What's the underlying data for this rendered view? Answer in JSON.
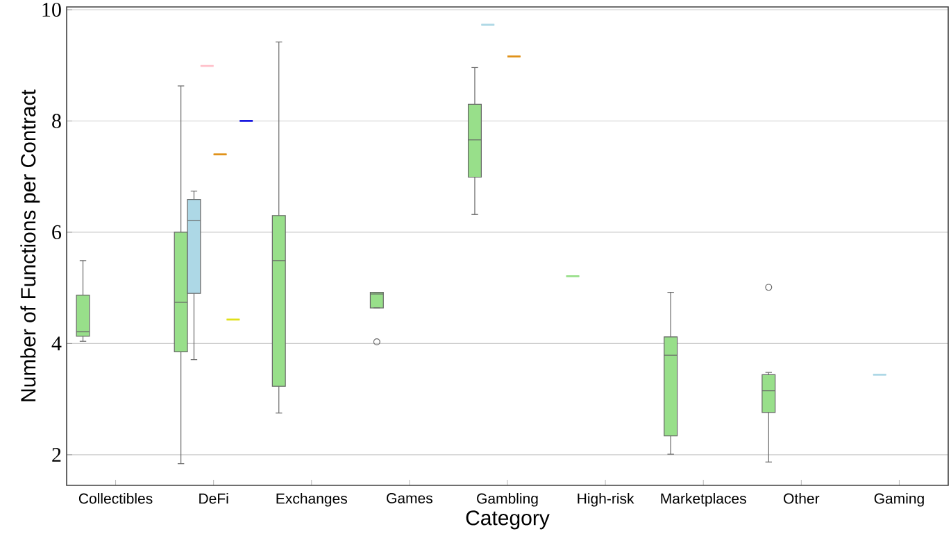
{
  "chart_data": {
    "type": "box",
    "xlabel": "Category",
    "ylabel": "Number of Functions per Contract",
    "categories": [
      "Collectibles",
      "DeFi",
      "Exchanges",
      "Games",
      "Gambling",
      "High-risk",
      "Marketplaces",
      "Other",
      "Gaming"
    ],
    "ylim": [
      1.45,
      10.05
    ],
    "yticks": [
      2,
      4,
      6,
      8,
      10
    ],
    "grid": "y",
    "series": [
      {
        "color": "#98df8a",
        "boxes": [
          {
            "low": 4.04,
            "q1": 4.13,
            "median": 4.21,
            "q3": 4.87,
            "high": 5.49
          },
          {
            "low": 1.84,
            "q1": 3.85,
            "median": 4.74,
            "q3": 6.0,
            "high": 8.63
          },
          {
            "low": 2.75,
            "q1": 3.23,
            "median": 5.49,
            "q3": 6.3,
            "high": 9.42
          },
          {
            "low": 4.64,
            "q1": 4.64,
            "median": 4.89,
            "q3": 4.92,
            "high": 4.92,
            "outliers": [
              4.03
            ]
          },
          {
            "low": 6.32,
            "q1": 6.99,
            "median": 7.66,
            "q3": 8.3,
            "high": 8.96
          },
          {
            "low": 5.21,
            "q1": 5.21,
            "median": 5.21,
            "q3": 5.21,
            "high": 5.21
          },
          {
            "low": 2.01,
            "q1": 2.34,
            "median": 3.79,
            "q3": 4.12,
            "high": 4.92
          },
          {
            "low": 1.87,
            "q1": 2.76,
            "median": 3.15,
            "q3": 3.44,
            "high": 3.48,
            "outliers": [
              5.01
            ]
          },
          null
        ]
      },
      {
        "color": "#add8e6",
        "boxes": [
          null,
          {
            "low": 3.71,
            "q1": 4.9,
            "median": 6.21,
            "q3": 6.59,
            "high": 6.74
          },
          null,
          null,
          {
            "low": 9.73,
            "q1": 9.73,
            "median": 9.73,
            "q3": 9.73,
            "high": 9.73
          },
          null,
          null,
          null,
          {
            "low": 3.44,
            "q1": 3.44,
            "median": 3.44,
            "q3": 3.44,
            "high": 3.44
          }
        ]
      },
      {
        "color": "#ffc0cb",
        "boxes": [
          null,
          {
            "low": 8.99,
            "q1": 8.99,
            "median": 8.99,
            "q3": 8.99,
            "high": 8.99
          },
          null,
          null,
          null,
          null,
          null,
          null,
          null
        ]
      },
      {
        "color": "#e0921a",
        "boxes": [
          null,
          {
            "low": 7.4,
            "q1": 7.4,
            "median": 7.4,
            "q3": 7.4,
            "high": 7.4
          },
          null,
          null,
          {
            "low": 9.16,
            "q1": 9.16,
            "median": 9.16,
            "q3": 9.16,
            "high": 9.16
          },
          null,
          null,
          null,
          null
        ]
      },
      {
        "color": "#e0e01a",
        "boxes": [
          null,
          {
            "low": 4.43,
            "q1": 4.43,
            "median": 4.43,
            "q3": 4.43,
            "high": 4.43
          },
          null,
          null,
          null,
          null,
          null,
          null,
          null
        ]
      },
      {
        "color": "#1a1ae0",
        "boxes": [
          null,
          {
            "low": 8.0,
            "q1": 8.0,
            "median": 8.0,
            "q3": 8.0,
            "high": 8.0
          },
          null,
          null,
          null,
          null,
          null,
          null,
          null
        ]
      }
    ]
  }
}
